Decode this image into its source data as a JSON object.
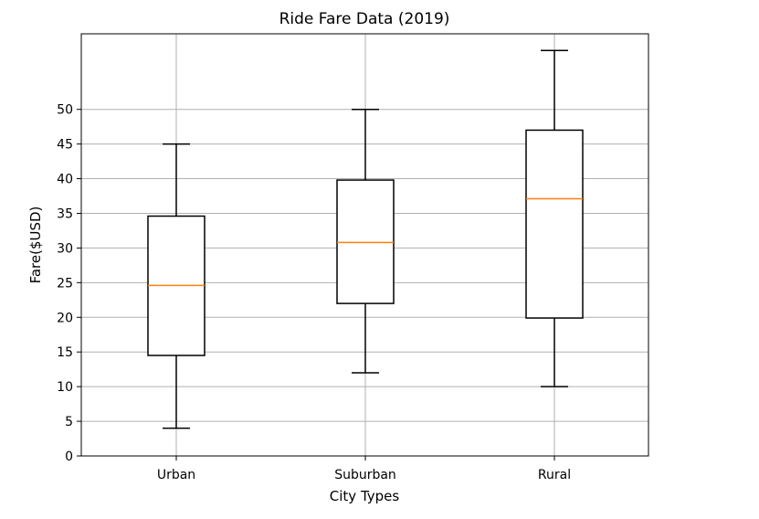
{
  "chart_data": {
    "type": "box",
    "title": "Ride Fare Data (2019)",
    "xlabel": "City Types",
    "ylabel": "Fare($USD)",
    "ylim": [
      0,
      58
    ],
    "yticks": [
      0,
      5,
      10,
      15,
      20,
      25,
      30,
      35,
      40,
      45,
      50
    ],
    "grid": true,
    "categories": [
      "Urban",
      "Suburban",
      "Rural"
    ],
    "boxes": [
      {
        "category": "Urban",
        "whisker_low": 4,
        "q1": 14.5,
        "median": 24.6,
        "q3": 34.6,
        "whisker_high": 45
      },
      {
        "category": "Suburban",
        "whisker_low": 12,
        "q1": 22,
        "median": 30.8,
        "q3": 39.8,
        "whisker_high": 50
      },
      {
        "category": "Rural",
        "whisker_low": 10,
        "q1": 19.9,
        "median": 37.1,
        "q3": 47,
        "whisker_high": 58.5
      }
    ],
    "colors": {
      "box": "#000000",
      "median": "#ff7f0e",
      "grid": "#b0b0b0"
    }
  }
}
